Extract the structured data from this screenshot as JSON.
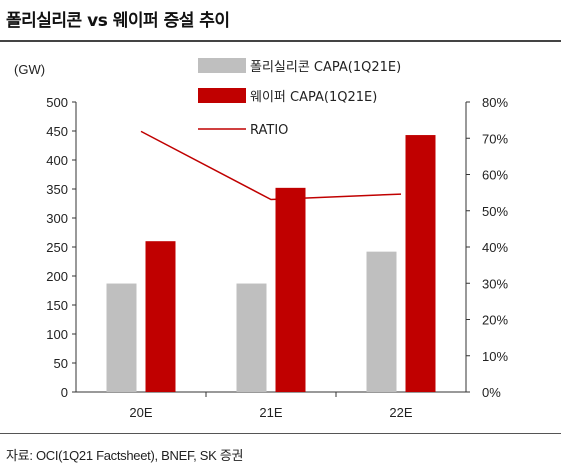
{
  "title": "폴리실리콘 vs 웨이퍼 증설 추이",
  "source": "자료: OCI(1Q21 Factsheet), BNEF, SK 증권",
  "chart_data": {
    "type": "bar",
    "categories": [
      "20E",
      "21E",
      "22E"
    ],
    "y_left_label": "(GW)",
    "y_left_lim": [
      0,
      500
    ],
    "y_left_ticks": [
      "0",
      "50",
      "100",
      "150",
      "200",
      "250",
      "300",
      "350",
      "400",
      "450",
      "500"
    ],
    "y_right_lim": [
      0,
      80
    ],
    "y_right_ticks": [
      "0%",
      "10%",
      "20%",
      "30%",
      "40%",
      "50%",
      "60%",
      "70%",
      "80%"
    ],
    "series": [
      {
        "name": "폴리실리콘 CAPA(1Q21E)",
        "type": "bar",
        "axis": "left",
        "color": "#bfbfbf",
        "values": [
          187,
          187,
          242
        ]
      },
      {
        "name": "웨이퍼 CAPA(1Q21E)",
        "type": "bar",
        "axis": "left",
        "color": "#c00000",
        "values": [
          260,
          352,
          443
        ]
      },
      {
        "name": "RATIO",
        "type": "line",
        "axis": "right",
        "color": "#c00000",
        "values": [
          71.9,
          53.1,
          54.6
        ]
      }
    ],
    "grid": false,
    "legend_placement": "top-center"
  }
}
